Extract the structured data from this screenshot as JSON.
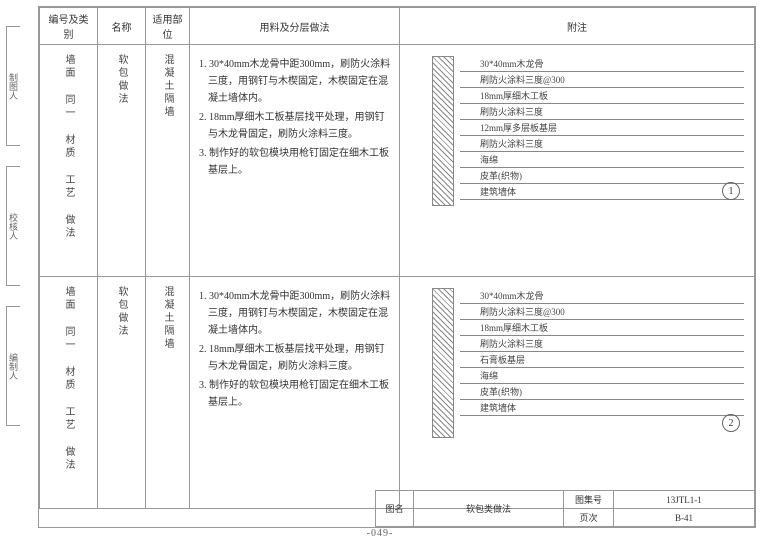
{
  "headers": {
    "c1": "编号及类别",
    "c2": "名称",
    "c3": "适用部位",
    "c4": "用料及分层做法",
    "c5": "附注"
  },
  "sideTabs": [
    "制图人",
    "校核人",
    "编制人"
  ],
  "rows": [
    {
      "cat": "墙面 同一 材质 工艺 做法",
      "name": "软包做法",
      "place": "混凝土隔墙",
      "steps": [
        "1. 30*40mm木龙骨中距300mm，刷防火涂料三度，用钢钉与木楔固定，木楔固定在混凝土墙体内。",
        "2. 18mm厚细木工板基层找平处理，用钢钉与木龙骨固定，刷防火涂料三度。",
        "3. 制作好的软包模块用枪钉固定在细木工板基层上。"
      ],
      "leaders": [
        "30*40mm木龙骨",
        "刷防火涂料三度@300",
        "18mm厚细木工板",
        "刷防火涂料三度",
        "12mm厚多层板基层",
        "刷防火涂料三度",
        "海绵",
        "皮革(织物)",
        "建筑墙体"
      ],
      "circle": "1"
    },
    {
      "cat": "墙面 同一 材质 工艺 做法",
      "name": "软包做法",
      "place": "混凝土隔墙",
      "steps": [
        "1. 30*40mm木龙骨中距300mm，刷防火涂料三度，用钢钉与木楔固定，木楔固定在混凝土墙体内。",
        "2. 18mm厚细木工板基层找平处理，用钢钉与木龙骨固定，刷防火涂料三度。",
        "3. 制作好的软包模块用枪钉固定在细木工板基层上。"
      ],
      "leaders": [
        "30*40mm木龙骨",
        "刷防火涂料三度@300",
        "18mm厚细木工板",
        "刷防火涂料三度",
        "石膏板基层",
        "海绵",
        "皮革(织物)",
        "建筑墙体"
      ],
      "circle": "2"
    }
  ],
  "footer": {
    "t1": "图名",
    "t2": "软包类做法",
    "t3": "图集号",
    "t4": "13JTL1-1",
    "t5": "页次",
    "t6": "B-41"
  },
  "pageNo": "-049-"
}
